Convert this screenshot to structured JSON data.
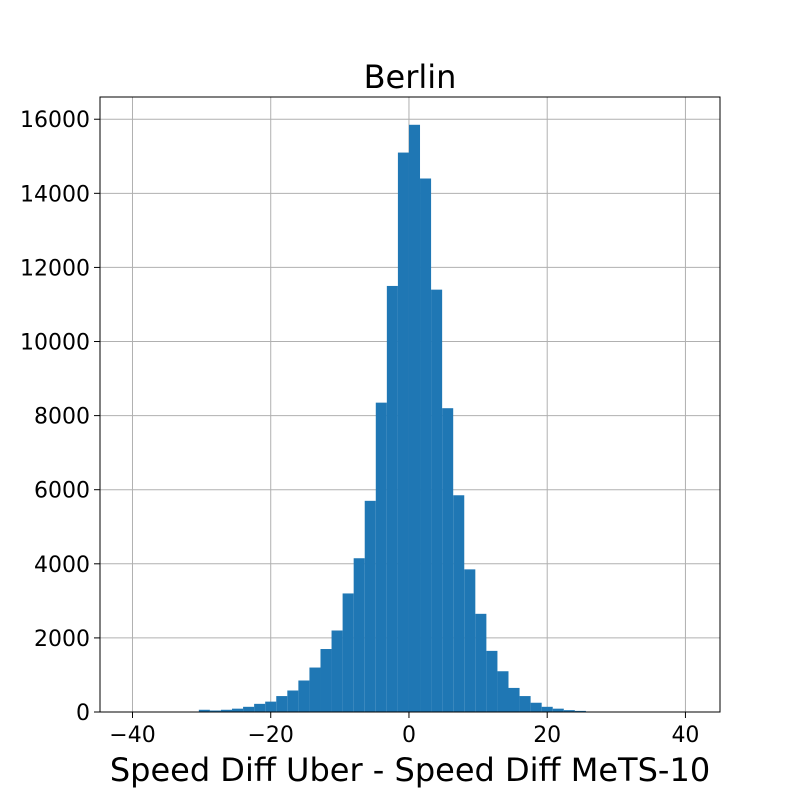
{
  "chart_data": {
    "type": "bar",
    "title": "Berlin",
    "xlabel": "Speed Diff Uber - Speed Diff MeTS-10",
    "ylabel": "",
    "xlim": [
      -44.7,
      45.0
    ],
    "ylim": [
      0,
      16600
    ],
    "xticks": [
      -40,
      -20,
      0,
      20,
      40
    ],
    "xtick_labels": [
      "−40",
      "−20",
      "0",
      "20",
      "40"
    ],
    "yticks": [
      0,
      2000,
      4000,
      6000,
      8000,
      10000,
      12000,
      14000,
      16000
    ],
    "ytick_labels": [
      "0",
      "2000",
      "4000",
      "6000",
      "8000",
      "10000",
      "12000",
      "14000",
      "16000"
    ],
    "grid": true,
    "color": "#1f77b4",
    "bin_width": 1.6,
    "bins": [
      {
        "x0": -30.4,
        "x1": -28.8,
        "count": 60
      },
      {
        "x0": -28.8,
        "x1": -27.2,
        "count": 40
      },
      {
        "x0": -27.2,
        "x1": -25.6,
        "count": 60
      },
      {
        "x0": -25.6,
        "x1": -24.0,
        "count": 90
      },
      {
        "x0": -24.0,
        "x1": -22.4,
        "count": 140
      },
      {
        "x0": -22.4,
        "x1": -20.8,
        "count": 220
      },
      {
        "x0": -20.8,
        "x1": -19.2,
        "count": 280
      },
      {
        "x0": -19.2,
        "x1": -17.6,
        "count": 430
      },
      {
        "x0": -17.6,
        "x1": -16.0,
        "count": 580
      },
      {
        "x0": -16.0,
        "x1": -14.4,
        "count": 850
      },
      {
        "x0": -14.4,
        "x1": -12.8,
        "count": 1200
      },
      {
        "x0": -12.8,
        "x1": -11.2,
        "count": 1700
      },
      {
        "x0": -11.2,
        "x1": -9.6,
        "count": 2200
      },
      {
        "x0": -9.6,
        "x1": -8.0,
        "count": 3200
      },
      {
        "x0": -8.0,
        "x1": -6.4,
        "count": 4150
      },
      {
        "x0": -6.4,
        "x1": -4.8,
        "count": 5700
      },
      {
        "x0": -4.8,
        "x1": -3.2,
        "count": 8350
      },
      {
        "x0": -3.2,
        "x1": -1.6,
        "count": 11500
      },
      {
        "x0": -1.6,
        "x1": 0.0,
        "count": 15100
      },
      {
        "x0": 0.0,
        "x1": 1.6,
        "count": 15850
      },
      {
        "x0": 1.6,
        "x1": 3.2,
        "count": 14400
      },
      {
        "x0": 3.2,
        "x1": 4.8,
        "count": 11400
      },
      {
        "x0": 4.8,
        "x1": 6.4,
        "count": 8200
      },
      {
        "x0": 6.4,
        "x1": 8.0,
        "count": 5850
      },
      {
        "x0": 8.0,
        "x1": 9.6,
        "count": 3850
      },
      {
        "x0": 9.6,
        "x1": 11.2,
        "count": 2650
      },
      {
        "x0": 11.2,
        "x1": 12.8,
        "count": 1650
      },
      {
        "x0": 12.8,
        "x1": 14.4,
        "count": 1100
      },
      {
        "x0": 14.4,
        "x1": 16.0,
        "count": 650
      },
      {
        "x0": 16.0,
        "x1": 17.6,
        "count": 430
      },
      {
        "x0": 17.6,
        "x1": 19.2,
        "count": 250
      },
      {
        "x0": 19.2,
        "x1": 20.8,
        "count": 140
      },
      {
        "x0": 20.8,
        "x1": 22.4,
        "count": 90
      },
      {
        "x0": 22.4,
        "x1": 24.0,
        "count": 50
      },
      {
        "x0": 24.0,
        "x1": 25.6,
        "count": 30
      }
    ]
  }
}
